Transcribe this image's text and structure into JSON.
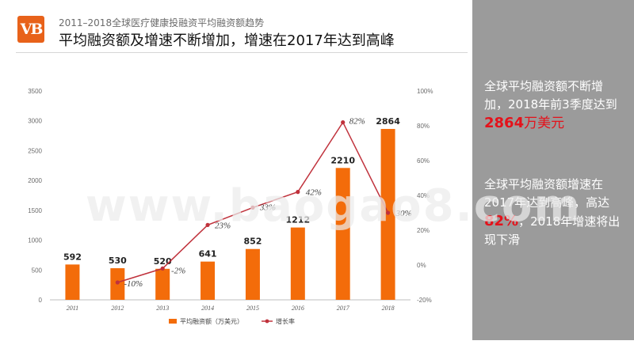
{
  "header": {
    "logo_text": "VB",
    "subtitle": "2011–2018全球医疗健康投融资平均融资额趋势",
    "title": "平均融资额及增速不断增加，增速在2017年达到高峰"
  },
  "colors": {
    "bar": "#f36c0a",
    "line": "#c0323c",
    "panel": "#9b9b9b",
    "highlight": "#e4121b",
    "logo": "#e8621a"
  },
  "side_panel": {
    "p1": {
      "text": "全球平均融资额不断增加，2018年前3季度达到",
      "highlight": "2864",
      "unit": "万美元"
    },
    "p2": {
      "pre": "全球平均融资额增速在2017年达到高峰，高达",
      "highlight": "82%",
      "post": "，2018年增速将出现下滑"
    }
  },
  "watermark": "www.baogao8.com",
  "chart_data": {
    "type": "bar",
    "categories": [
      "2011",
      "2012",
      "2013",
      "2014",
      "2015",
      "2016",
      "2017",
      "2018"
    ],
    "series": [
      {
        "name": "平均融资额（万美元）",
        "type": "bar",
        "axis": "left",
        "values": [
          592,
          530,
          520,
          641,
          852,
          1212,
          2210,
          2864
        ],
        "labels": [
          "592",
          "530",
          "520",
          "641",
          "852",
          "1212",
          "2210",
          "2864"
        ]
      },
      {
        "name": "增长率",
        "type": "line",
        "axis": "right",
        "values": [
          null,
          -10,
          -2,
          23,
          33,
          42,
          82,
          30
        ],
        "labels": [
          "",
          "-10%",
          "-2%",
          "23%",
          "33%",
          "42%",
          "82%",
          "30%"
        ]
      }
    ],
    "y_left": {
      "range": [
        0,
        3500
      ],
      "ticks": [
        "0",
        "500",
        "1000",
        "1500",
        "2000",
        "2500",
        "3000",
        "3500"
      ]
    },
    "y_right": {
      "range": [
        -20,
        100
      ],
      "ticks": [
        "-20%",
        "0%",
        "20%",
        "40%",
        "60%",
        "80%",
        "100%"
      ]
    },
    "legend": {
      "position": "bottom"
    },
    "grid": false
  }
}
